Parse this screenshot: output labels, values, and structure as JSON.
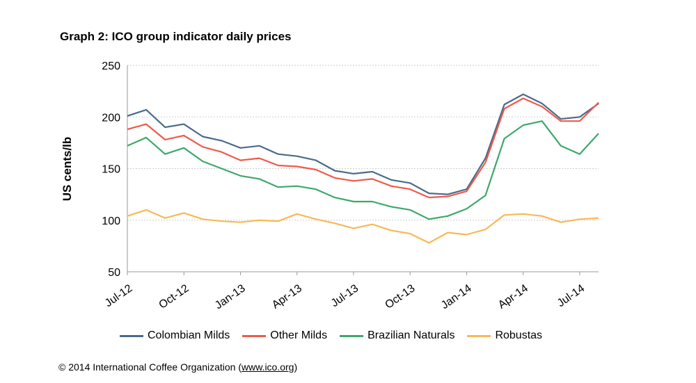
{
  "chart_data": {
    "type": "line",
    "title": "Graph 2: ICO group indicator daily prices",
    "xlabel": "",
    "ylabel": "US cents/lb",
    "ylim": [
      50,
      250
    ],
    "yticks": [
      50,
      100,
      150,
      200,
      250
    ],
    "grid": true,
    "legend_position": "bottom",
    "x_tick_labels": [
      "Jul-12",
      "Oct-12",
      "Jan-13",
      "Apr-13",
      "Jul-13",
      "Oct-13",
      "Jan-14",
      "Apr-14",
      "Jul-14"
    ],
    "x": [
      "Jul-12",
      "Aug-12",
      "Sep-12",
      "Oct-12",
      "Nov-12",
      "Dec-12",
      "Jan-13",
      "Feb-13",
      "Mar-13",
      "Apr-13",
      "May-13",
      "Jun-13",
      "Jul-13",
      "Aug-13",
      "Sep-13",
      "Oct-13",
      "Nov-13",
      "Dec-13",
      "Jan-14",
      "Feb-14",
      "Mar-14",
      "Apr-14",
      "May-14",
      "Jun-14",
      "Jul-14",
      "Aug-14"
    ],
    "series": [
      {
        "name": "Colombian Milds",
        "color": "#4a6b8a",
        "values": [
          201,
          207,
          190,
          193,
          181,
          177,
          170,
          172,
          164,
          162,
          158,
          148,
          145,
          147,
          139,
          136,
          126,
          125,
          130,
          160,
          212,
          222,
          213,
          198,
          200,
          213
        ]
      },
      {
        "name": "Other Milds",
        "color": "#ef5a4a",
        "values": [
          188,
          193,
          178,
          182,
          171,
          166,
          158,
          160,
          153,
          152,
          149,
          141,
          138,
          140,
          133,
          130,
          122,
          123,
          128,
          156,
          208,
          218,
          210,
          196,
          196,
          214
        ]
      },
      {
        "name": "Brazilian Naturals",
        "color": "#3da86a",
        "values": [
          172,
          180,
          164,
          170,
          157,
          150,
          143,
          140,
          132,
          133,
          130,
          122,
          118,
          118,
          113,
          110,
          101,
          104,
          111,
          124,
          179,
          192,
          196,
          172,
          164,
          184
        ]
      },
      {
        "name": "Robustas",
        "color": "#f7b955",
        "values": [
          104,
          110,
          102,
          107,
          101,
          99,
          98,
          100,
          99,
          106,
          101,
          97,
          92,
          96,
          90,
          87,
          78,
          88,
          86,
          91,
          105,
          106,
          104,
          98,
          101,
          102
        ]
      }
    ]
  },
  "credit": {
    "prefix": "© 2014 International Coffee Organization (",
    "link": "www.ico.org",
    "suffix": ")"
  }
}
